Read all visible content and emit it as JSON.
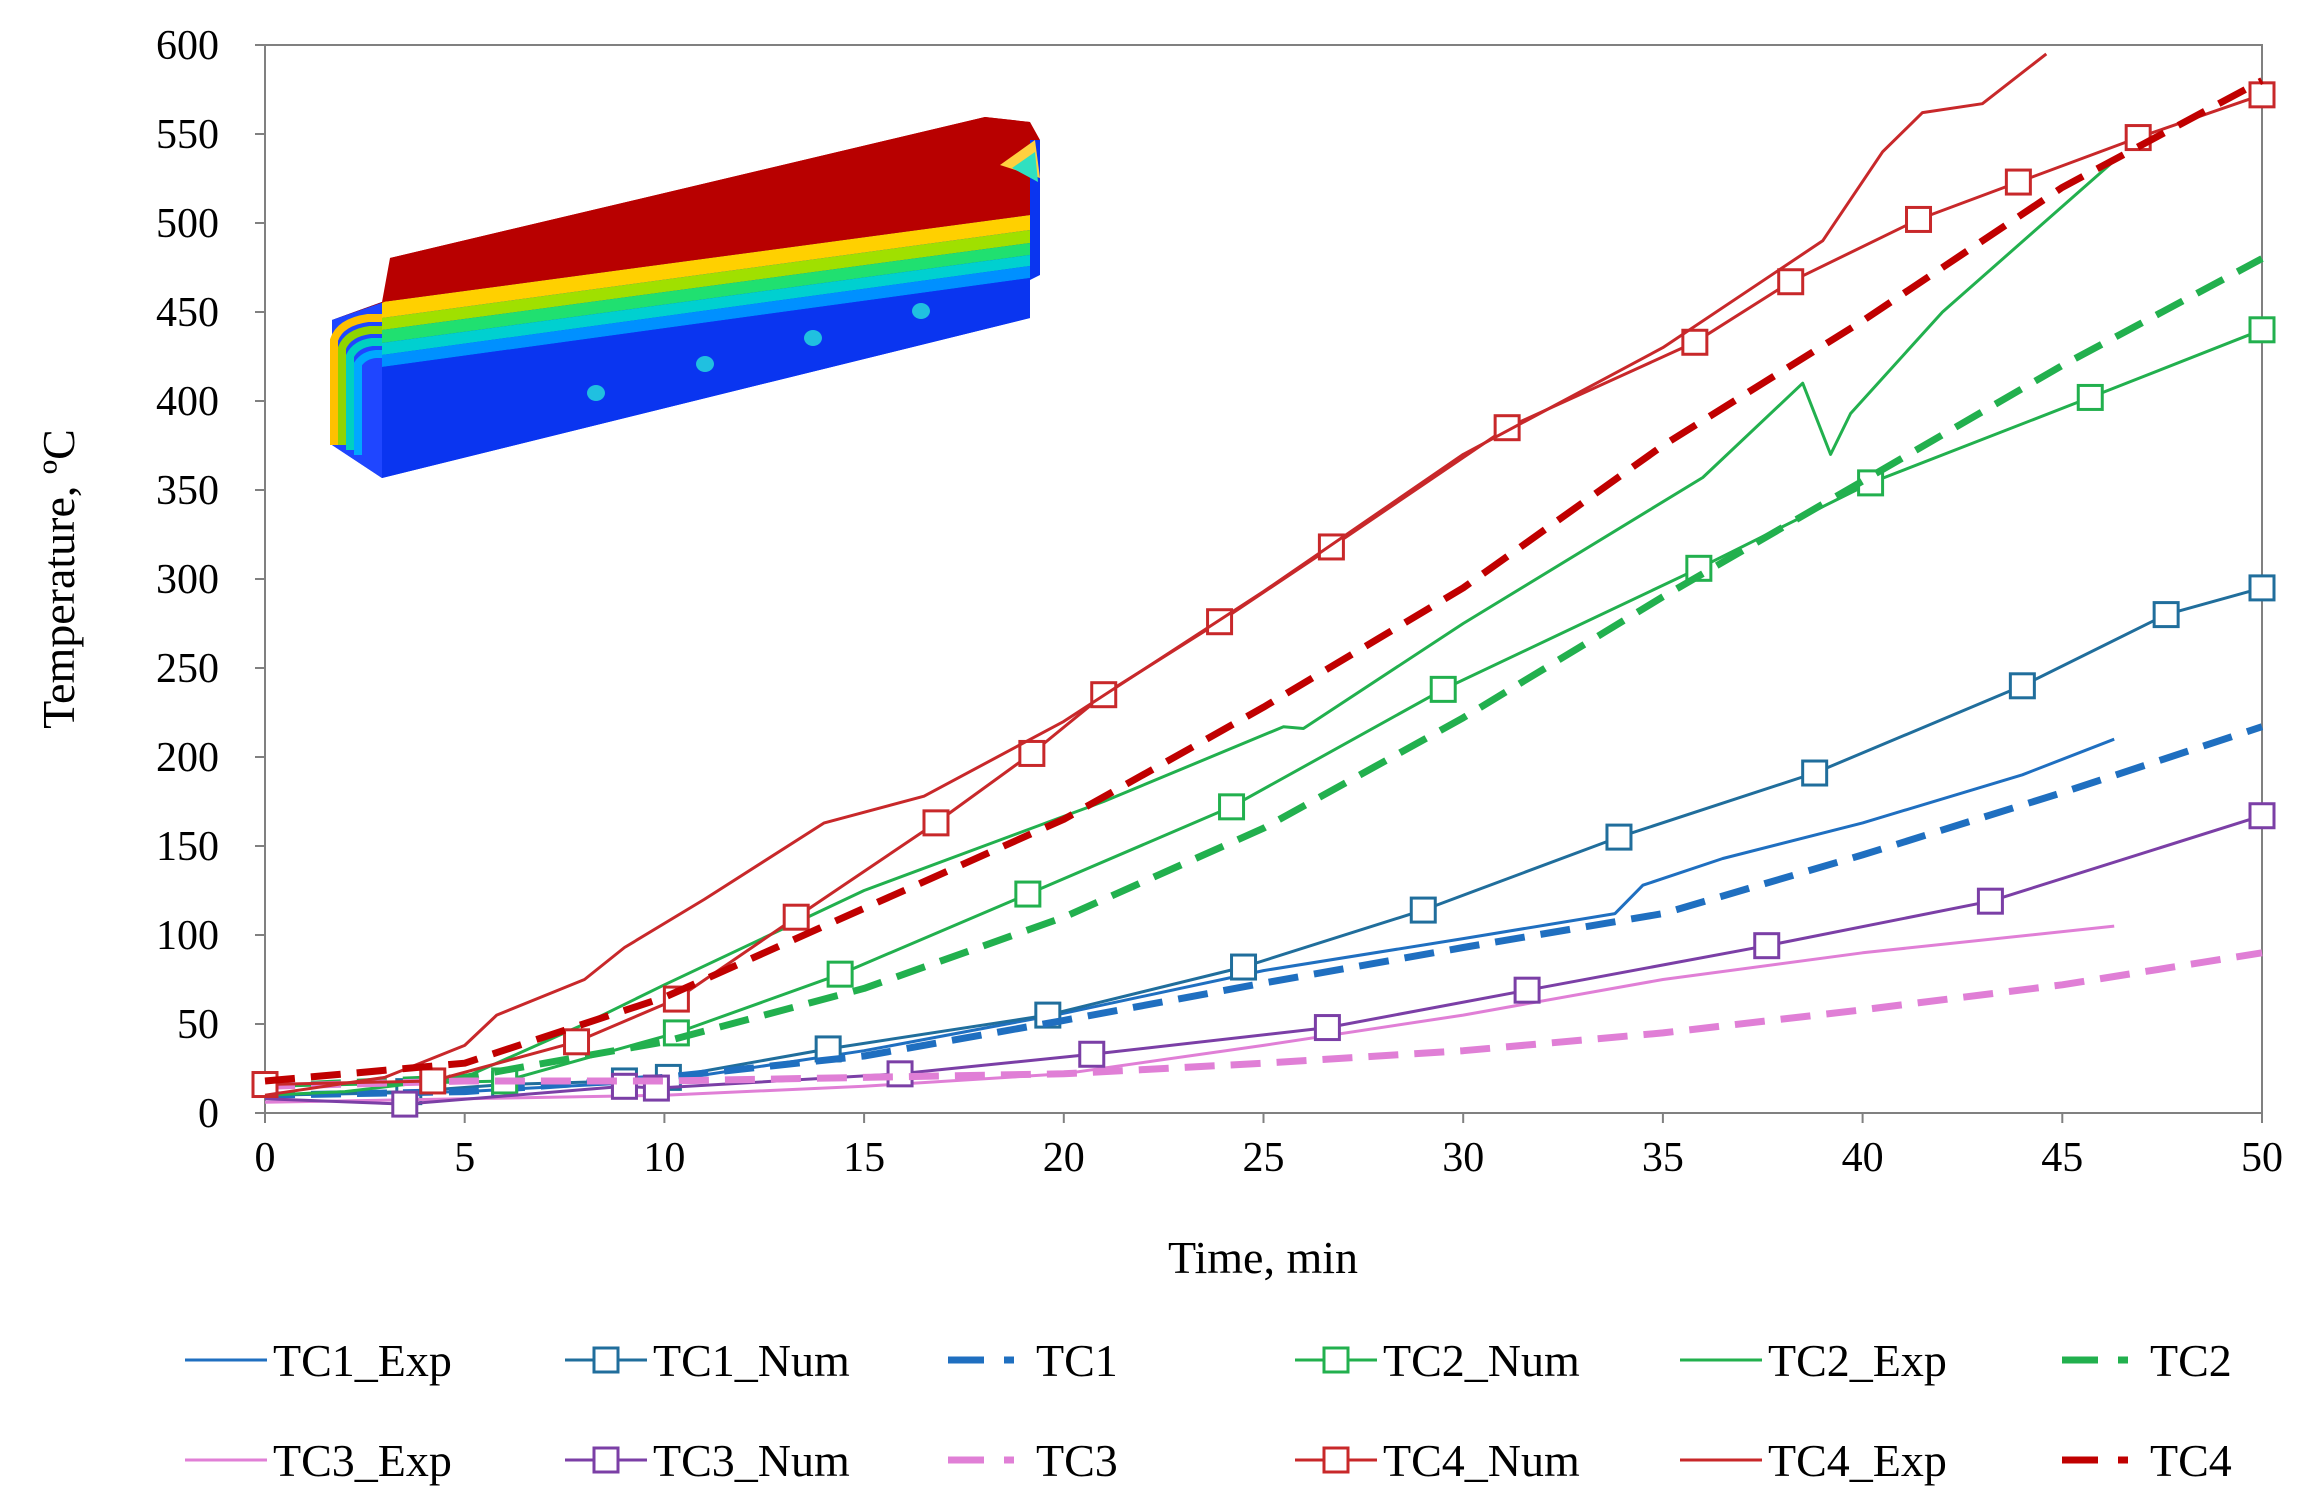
{
  "chart_data": {
    "type": "line",
    "title": "",
    "xlabel": "Time, min",
    "ylabel": "Temperature, ºC",
    "xlim": [
      0,
      50
    ],
    "ylim": [
      0,
      600
    ],
    "xticks": [
      0,
      5,
      10,
      15,
      20,
      25,
      30,
      35,
      40,
      45,
      50
    ],
    "yticks": [
      0,
      50,
      100,
      150,
      200,
      250,
      300,
      350,
      400,
      450,
      500,
      550,
      600
    ],
    "grid": false,
    "legend_position": "bottom",
    "series": [
      {
        "name": "TC1_Exp",
        "style": "solid",
        "marker": "none",
        "color": "#1f6fc0",
        "x": [
          0,
          5,
          10,
          15,
          20,
          25,
          30,
          33.8,
          34.5,
          36.5,
          40,
          44,
          46.3
        ],
        "y": [
          10,
          12,
          18,
          35,
          56,
          80,
          98,
          112,
          128,
          143,
          163,
          190,
          210
        ]
      },
      {
        "name": "TC1_Num",
        "style": "solid",
        "marker": "square",
        "color": "#206e9c",
        "x": [
          0,
          3.6,
          6,
          9,
          10.1,
          14.1,
          19.6,
          24.5,
          29,
          33.9,
          38.8,
          44,
          47.6,
          50
        ],
        "y": [
          10,
          12,
          16,
          18,
          20,
          36,
          55,
          82,
          114,
          155,
          191,
          240,
          280,
          295
        ]
      },
      {
        "name": "TC1",
        "style": "dashed",
        "marker": "none",
        "color": "#1f6fc0",
        "x": [
          0,
          5,
          10,
          15,
          20,
          25,
          30,
          35,
          40,
          45,
          50
        ],
        "y": [
          10,
          12,
          20,
          32,
          52,
          73,
          93,
          112,
          145,
          180,
          217
        ]
      },
      {
        "name": "TC2_Num",
        "style": "solid",
        "marker": "square",
        "color": "#22b04e",
        "x": [
          0,
          6,
          10.3,
          14.4,
          19.1,
          24.2,
          29.5,
          35.9,
          40.2,
          45.7,
          50
        ],
        "y": [
          15,
          18,
          45,
          78,
          123,
          172,
          238,
          306,
          354,
          402,
          440
        ]
      },
      {
        "name": "TC2_Exp",
        "style": "solid",
        "marker": "none",
        "color": "#22b04e",
        "x": [
          0,
          2,
          5,
          8,
          10,
          15,
          21,
          25.5,
          26,
          30,
          36,
          38.5,
          39.2,
          39.7,
          42,
          46.3
        ],
        "y": [
          10,
          12,
          20,
          50,
          72,
          125,
          175,
          217,
          216,
          275,
          357,
          410,
          370,
          393,
          450,
          535
        ]
      },
      {
        "name": "TC2",
        "style": "dashed",
        "marker": "none",
        "color": "#22b04e",
        "x": [
          0,
          5,
          10,
          15,
          20,
          25,
          30,
          35,
          40,
          45,
          50
        ],
        "y": [
          15,
          20,
          40,
          70,
          110,
          160,
          222,
          290,
          355,
          420,
          480
        ]
      },
      {
        "name": "TC3_Exp",
        "style": "solid",
        "marker": "none",
        "color": "#e07fd6",
        "x": [
          0,
          5,
          10,
          15,
          20,
          25,
          30,
          35,
          40,
          46.3
        ],
        "y": [
          6,
          8,
          10,
          15,
          22,
          38,
          55,
          75,
          90,
          105
        ]
      },
      {
        "name": "TC3_Num",
        "style": "solid",
        "marker": "square",
        "color": "#7b3fa6",
        "x": [
          0,
          3.5,
          9,
          9.8,
          15.9,
          20.7,
          26.6,
          31.6,
          37.6,
          43.2,
          50
        ],
        "y": [
          8,
          5,
          15,
          14,
          22,
          33,
          48,
          69,
          94,
          119,
          167
        ]
      },
      {
        "name": "TC3",
        "style": "dashed",
        "marker": "none",
        "color": "#e07fd6",
        "x": [
          0,
          5,
          10,
          15,
          20,
          25,
          30,
          35,
          40,
          45,
          50
        ],
        "y": [
          15,
          18,
          18,
          20,
          22,
          28,
          35,
          45,
          58,
          72,
          90
        ]
      },
      {
        "name": "TC4_Num",
        "style": "solid",
        "marker": "square",
        "color": "#c8282a",
        "x": [
          0,
          4.2,
          7.8,
          10.3,
          13.3,
          16.8,
          19.2,
          21,
          23.9,
          26.7,
          31.1,
          35.8,
          38.2,
          41.4,
          43.9,
          46.9,
          50
        ],
        "y": [
          16,
          18,
          40,
          64,
          110,
          163,
          202,
          235,
          276,
          318,
          385,
          433,
          467,
          502,
          523,
          548,
          572
        ]
      },
      {
        "name": "TC4_Exp",
        "style": "solid",
        "marker": "none",
        "color": "#c8282a",
        "x": [
          0,
          3,
          5,
          5.8,
          8,
          9,
          11,
          14,
          16.5,
          20,
          25,
          30,
          35,
          39,
          40.5,
          41.5,
          43,
          44.6
        ],
        "y": [
          10,
          20,
          38,
          55,
          75,
          93,
          120,
          163,
          178,
          220,
          293,
          370,
          430,
          490,
          540,
          562,
          567,
          595
        ]
      },
      {
        "name": "TC4",
        "style": "dashed",
        "marker": "none",
        "color": "#c00000",
        "x": [
          0,
          5,
          10,
          15,
          20,
          25,
          30,
          35,
          40,
          45,
          50
        ],
        "y": [
          18,
          28,
          65,
          115,
          165,
          228,
          295,
          375,
          445,
          520,
          580
        ]
      }
    ]
  }
}
